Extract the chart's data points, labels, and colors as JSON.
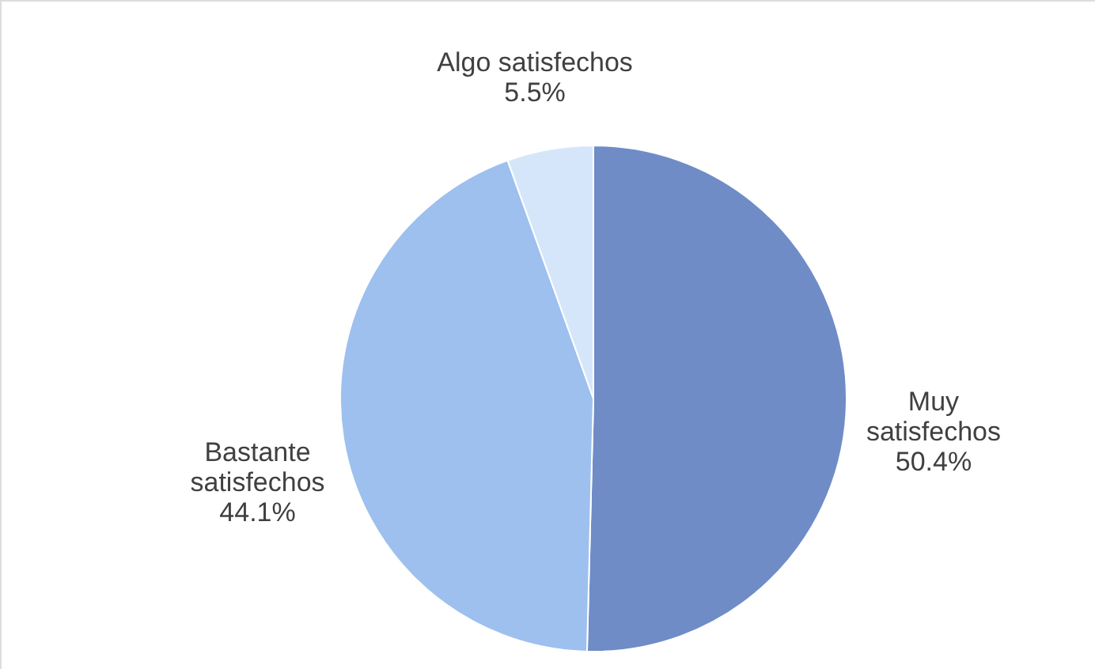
{
  "chart_data": {
    "type": "pie",
    "categories": [
      "Muy satisfechos",
      "Bastante satisfechos",
      "Algo satisfechos"
    ],
    "values": [
      50.4,
      44.1,
      5.5
    ],
    "value_labels": [
      "50.4%",
      "44.1%",
      "5.5%"
    ],
    "colors": [
      "#6f8cc7",
      "#9dc0ee",
      "#d6e6fa"
    ]
  }
}
